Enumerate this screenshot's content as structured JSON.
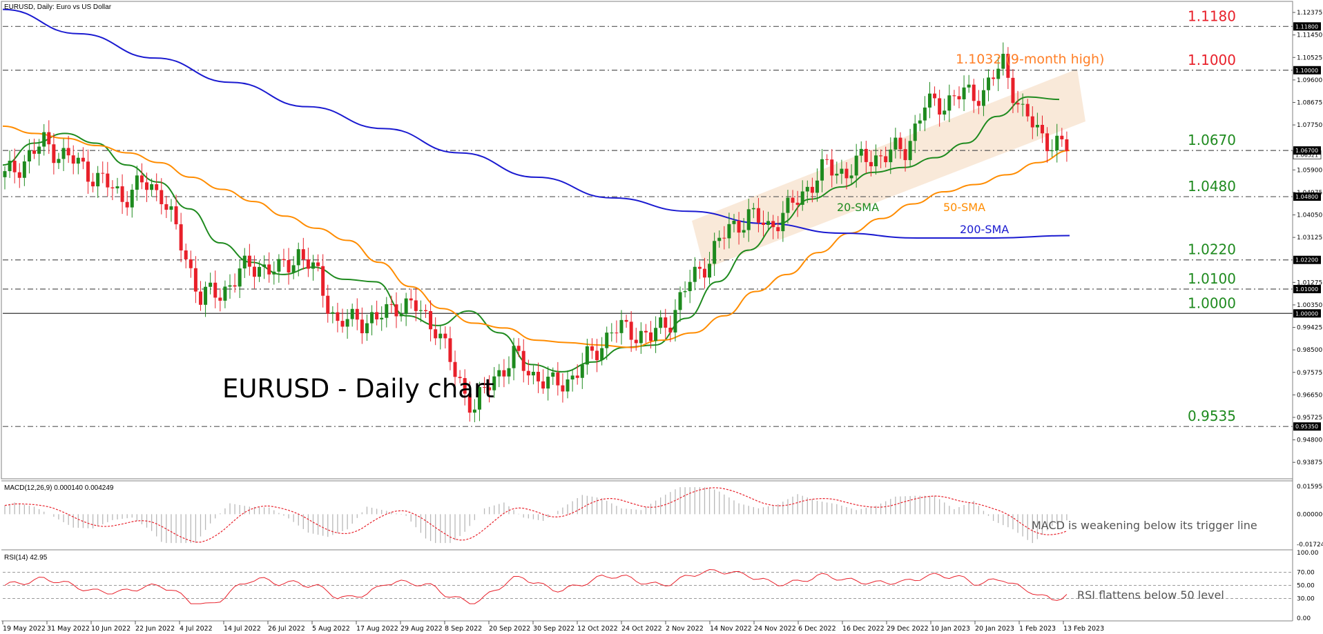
{
  "header": {
    "symbol_caption": "EURUSD, Daily:  Euro vs US Dollar",
    "chart_title": "EURUSD - Daily chart"
  },
  "colors": {
    "red_level": "#e8202a",
    "green_level": "#1e8a1e",
    "sma20": "#1e8a1e",
    "sma50": "#ff8c00",
    "sma200": "#1a1ad0",
    "bull_candle": "#1e8a1e",
    "bear_candle": "#e8202a",
    "channel": "#f7e1cc",
    "macd_hist": "#b8b8b8",
    "macd_signal": "#e8202a",
    "rsi_line": "#e8202a"
  },
  "chart_data": [
    {
      "type": "candlestick",
      "title": "EURUSD, Daily:  Euro vs US Dollar",
      "x_tick_labels": [
        "19 May 2022",
        "31 May 2022",
        "10 Jun 2022",
        "22 Jun 2022",
        "4 Jul 2022",
        "14 Jul 2022",
        "26 Jul 2022",
        "5 Aug 2022",
        "17 Aug 2022",
        "29 Aug 2022",
        "8 Sep 2022",
        "20 Sep 2022",
        "30 Sep 2022",
        "12 Oct 2022",
        "24 Oct 2022",
        "2 Nov 2022",
        "14 Nov 2022",
        "24 Nov 2022",
        "6 Dec 2022",
        "16 Dec 2022",
        "29 Dec 2022",
        "10 Jan 2023",
        "20 Jan 2023",
        "1 Feb 2023",
        "13 Feb 2023"
      ],
      "y_tick_labels": [
        "1.12375",
        "1.11450",
        "1.10525",
        "1.09600",
        "1.08675",
        "1.07750",
        "1.05900",
        "1.04975",
        "1.04050",
        "1.03125",
        "1.01275",
        "1.00350",
        "0.99425",
        "0.98500",
        "0.97575",
        "0.96650",
        "0.95725",
        "0.94800",
        "0.93875"
      ],
      "ylim": [
        0.932,
        1.1283
      ],
      "horizontal_levels": [
        {
          "value": 1.118,
          "label": "1.1180",
          "tag": "1.11800",
          "color": "red",
          "style": "dashed"
        },
        {
          "value": 1.1,
          "label": "1.1000",
          "tag": "1.10000",
          "color": "red",
          "style": "dashed"
        },
        {
          "value": 1.067,
          "label": "1.0670",
          "tag": "1.06700",
          "color": "green",
          "style": "dashed"
        },
        {
          "value": 1.048,
          "label": "1.0480",
          "tag": "1.04800",
          "color": "green",
          "style": "dashed"
        },
        {
          "value": 1.022,
          "label": "1.0220",
          "tag": "1.02200",
          "color": "green",
          "style": "dashed"
        },
        {
          "value": 1.01,
          "label": "1.0100",
          "tag": "1.01000",
          "color": "green",
          "style": "dashed"
        },
        {
          "value": 1.0,
          "label": "1.0000",
          "tag": "1.00000",
          "color": "green",
          "style": "solid"
        },
        {
          "value": 0.9535,
          "label": "0.9535",
          "tag": "0.95350",
          "color": "green",
          "style": "dashed"
        }
      ],
      "last_price_tag": "1.06521",
      "annotations": {
        "high_note": "1.1032 (9-month high)",
        "sma20_label": "20-SMA",
        "sma50_label": "50-SMA",
        "sma200_label": "200-SMA"
      },
      "series": [
        {
          "name": "20-SMA",
          "values": [
            1.061,
            1.07,
            1.074,
            1.07,
            1.061,
            1.054,
            1.043,
            1.029,
            1.021,
            1.016,
            1.019,
            1.014,
            1.013,
            0.999,
            0.995,
            1.001,
            0.992,
            0.979,
            0.976,
            0.98,
            0.986,
            0.987,
            0.998,
            1.013,
            1.026,
            1.037,
            1.047,
            1.052,
            1.058,
            1.06,
            1.064,
            1.07,
            1.081,
            1.089,
            1.088
          ]
        },
        {
          "name": "50-SMA",
          "values": [
            1.077,
            1.074,
            1.072,
            1.069,
            1.066,
            1.062,
            1.056,
            1.051,
            1.046,
            1.04,
            1.035,
            1.03,
            1.021,
            1.011,
            1.002,
            0.996,
            0.994,
            0.989,
            0.988,
            0.987,
            0.986,
            0.989,
            0.992,
            0.999,
            1.009,
            1.016,
            1.025,
            1.033,
            1.039,
            1.045,
            1.05,
            1.053,
            1.057,
            1.062,
            1.067
          ]
        },
        {
          "name": "200-SMA",
          "values": [
            1.125,
            1.115,
            1.105,
            1.095,
            1.085,
            1.076,
            1.066,
            1.056,
            1.0475,
            1.042,
            1.037,
            1.033,
            1.031,
            1.031,
            1.032
          ]
        }
      ]
    },
    {
      "type": "line",
      "title": "MACD(12,26,9) 0.000140 0.004249",
      "y_tick_labels": [
        "0.015958",
        "0.000000",
        "-0.017249"
      ],
      "ylim": [
        -0.01725,
        0.01596
      ],
      "annotation": "MACD is weakening below its trigger line"
    },
    {
      "type": "line",
      "title": "RSI(14) 42.95",
      "y_tick_labels": [
        "100.00",
        "70.00",
        "50.00",
        "30.00",
        "0.00"
      ],
      "ylim": [
        0,
        100
      ],
      "levels": [
        70,
        50,
        30
      ],
      "annotation": "RSI flattens below 50 level"
    }
  ]
}
